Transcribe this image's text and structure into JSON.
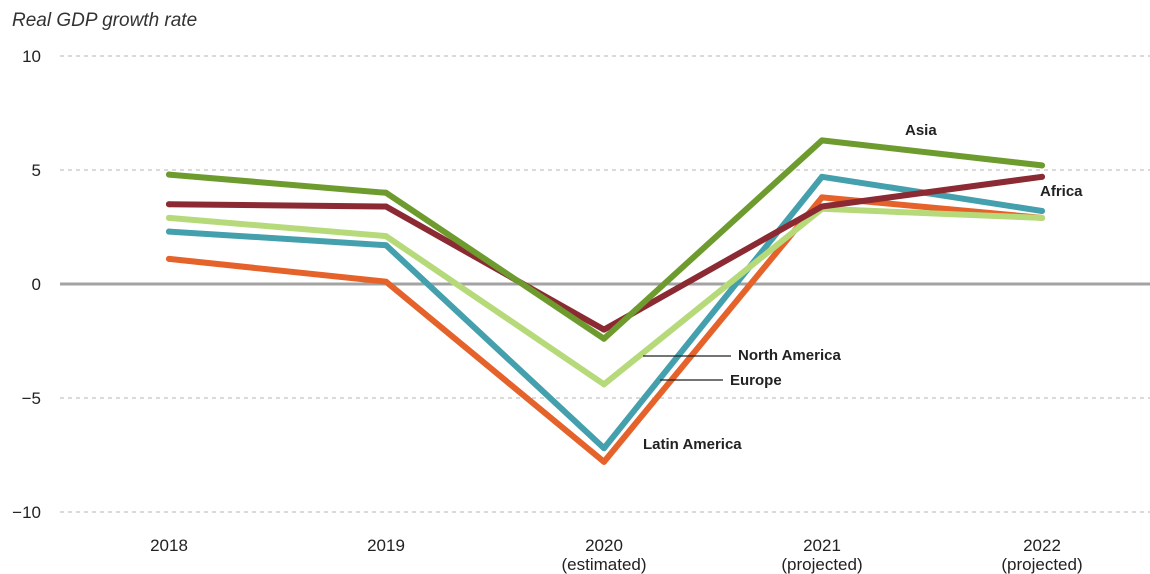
{
  "chart_data": {
    "type": "line",
    "title": "Real GDP growth rate",
    "categories": [
      [
        "2018"
      ],
      [
        "2019"
      ],
      [
        "2020",
        "(estimated)"
      ],
      [
        "2021",
        "(projected)"
      ],
      [
        "2022",
        "(projected)"
      ]
    ],
    "ylim": [
      -10,
      10
    ],
    "yticks": [
      10,
      5,
      0,
      -5,
      -10
    ],
    "ytick_labels": [
      "10",
      "5",
      "0",
      "−5",
      "−10"
    ],
    "grid": true,
    "series": [
      {
        "name": "Latin America",
        "color": "#e5622b",
        "values": [
          1.1,
          0.1,
          -7.8,
          3.8,
          2.9
        ]
      },
      {
        "name": "Europe",
        "color": "#44a0ad",
        "values": [
          2.3,
          1.7,
          -7.2,
          4.7,
          3.2
        ]
      },
      {
        "name": "North America",
        "color": "#b6da7a",
        "values": [
          2.9,
          2.1,
          -4.4,
          3.3,
          2.9
        ]
      },
      {
        "name": "Africa",
        "color": "#8b2a32",
        "values": [
          3.5,
          3.4,
          -2.0,
          3.4,
          4.7
        ]
      },
      {
        "name": "Asia",
        "color": "#6e9b2e",
        "values": [
          4.8,
          4.0,
          -2.4,
          6.3,
          5.2
        ]
      }
    ]
  }
}
